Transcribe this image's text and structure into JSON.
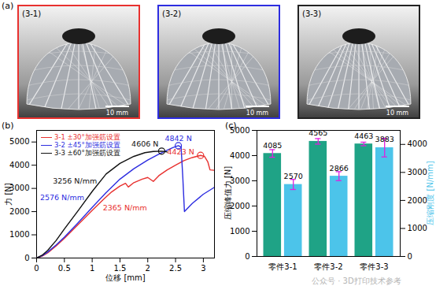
{
  "images": {
    "panel_label": "(a)",
    "items": [
      {
        "label": "(3-1)",
        "scale_bar": "10 mm",
        "border_color": "#e8312f"
      },
      {
        "label": "(3-2)",
        "scale_bar": "10 mm",
        "border_color": "#2d2de0"
      },
      {
        "label": "(3-3)",
        "scale_bar": "10 mm",
        "border_color": "#222222"
      }
    ]
  },
  "watermark": "公众号 · 3D打印技术参考",
  "chart_data": [
    {
      "type": "line",
      "title": "(b)",
      "x_label": "位移 [mm]",
      "y_label": "力 [N]",
      "xlim": [
        0,
        3.2
      ],
      "xticks": [
        0,
        0.5,
        1,
        1.5,
        2,
        2.5,
        3
      ],
      "ylim": [
        0,
        5500
      ],
      "yticks": [
        0,
        1000,
        2000,
        3000,
        4000,
        5000
      ],
      "grid": false,
      "legend": "upper-left",
      "series": [
        {
          "name": "3-1 ±30°加强筋设置",
          "color": "#e8312f",
          "x": [
            0,
            0.1,
            0.2,
            0.35,
            0.5,
            0.75,
            1.0,
            1.2,
            1.35,
            1.5,
            1.6,
            1.65,
            1.75,
            1.9,
            2.0,
            2.1,
            2.2,
            2.35,
            2.5,
            2.65,
            2.8,
            2.95,
            3.02,
            3.08,
            3.12,
            3.2
          ],
          "values": [
            0,
            80,
            220,
            520,
            850,
            1450,
            2050,
            2520,
            2850,
            3100,
            3220,
            3060,
            3250,
            3400,
            3470,
            3300,
            3550,
            3800,
            4000,
            4200,
            4330,
            4423,
            4380,
            4150,
            3800,
            3780
          ],
          "peak": {
            "x": 2.95,
            "y": 4423,
            "label": "4423 N"
          }
        },
        {
          "name": "3-2 ±45°加强筋设置",
          "color": "#2d2de0",
          "x": [
            0,
            0.1,
            0.2,
            0.35,
            0.5,
            0.75,
            1.0,
            1.25,
            1.5,
            1.75,
            2.0,
            2.2,
            2.35,
            2.45,
            2.55,
            2.6,
            2.63,
            2.66,
            2.8,
            3.0,
            3.2
          ],
          "values": [
            0,
            100,
            260,
            560,
            900,
            1530,
            2180,
            2820,
            3400,
            3850,
            4220,
            4480,
            4650,
            4760,
            4842,
            4780,
            3500,
            2000,
            2350,
            2750,
            3050
          ],
          "peak": {
            "x": 2.55,
            "y": 4842,
            "label": "4842 N"
          }
        },
        {
          "name": "3-3 ±60°加强筋设置",
          "color": "#111111",
          "x": [
            0,
            0.1,
            0.2,
            0.35,
            0.5,
            0.75,
            1.0,
            1.25,
            1.5,
            1.75,
            1.95,
            2.1,
            2.25,
            2.35
          ],
          "values": [
            0,
            120,
            330,
            750,
            1250,
            2050,
            2870,
            3620,
            4080,
            4380,
            4540,
            4590,
            4606,
            4570
          ],
          "peak": {
            "x": 2.25,
            "y": 4606,
            "label": "4606 N"
          }
        }
      ],
      "annotations": [
        {
          "text": "3256 N/mm",
          "x": 0.25,
          "y": 3300,
          "color": "#111111"
        },
        {
          "text": "2576 N/mm",
          "x": 0.02,
          "y": 2600,
          "color": "#2d2de0"
        },
        {
          "text": "2365 N/mm",
          "x": 1.15,
          "y": 2150,
          "color": "#e8312f"
        }
      ]
    },
    {
      "type": "bar",
      "title": "(c)",
      "categories": [
        "零件3-1",
        "零件3-2",
        "零件3-3"
      ],
      "y_label": "压缩峰值力 [N]",
      "y2_label": "压缩刚度 [N/mm]",
      "ylim": [
        0,
        5000
      ],
      "yticks": [
        0,
        1000,
        2000,
        3000,
        4000,
        5000
      ],
      "y2lim": [
        0,
        4500
      ],
      "y2ticks": [
        0,
        1000,
        2000,
        3000,
        4000
      ],
      "grid": false,
      "data_labels": true,
      "series": [
        {
          "color": "#1fa386",
          "values": [
            4085,
            4565,
            4463
          ],
          "errors": [
            150,
            110,
            70
          ]
        },
        {
          "color": "#4cc4ea",
          "axis": "y2",
          "values": [
            2570,
            2866,
            3883
          ],
          "errors": [
            180,
            160,
            330
          ]
        }
      ]
    }
  ]
}
